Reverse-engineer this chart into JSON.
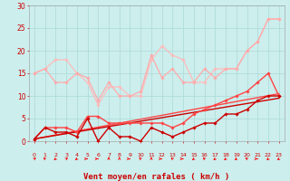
{
  "title": "",
  "xlabel": "Vent moyen/en rafales ( km/h )",
  "ylabel": "",
  "background_color": "#cceeed",
  "grid_color": "#b0dddb",
  "xlim": [
    -0.5,
    23.5
  ],
  "ylim": [
    0,
    30
  ],
  "yticks": [
    0,
    5,
    10,
    15,
    20,
    25,
    30
  ],
  "xticks": [
    0,
    1,
    2,
    3,
    4,
    5,
    6,
    7,
    8,
    9,
    10,
    11,
    12,
    13,
    14,
    15,
    16,
    17,
    18,
    19,
    20,
    21,
    22,
    23
  ],
  "series": [
    {
      "x": [
        0,
        1,
        2,
        3,
        4,
        5,
        6,
        7,
        8,
        9,
        10,
        11,
        12,
        13,
        14,
        15,
        16,
        17,
        18,
        19,
        20,
        21,
        22,
        23
      ],
      "y": [
        15,
        16,
        18,
        18,
        15,
        13,
        8,
        12,
        12,
        10,
        10,
        18,
        21,
        19,
        18,
        13,
        13,
        16,
        16,
        16,
        20,
        22,
        27,
        27
      ],
      "color": "#ffbbbb",
      "linewidth": 0.9,
      "marker": "D",
      "markersize": 1.8,
      "zorder": 2
    },
    {
      "x": [
        0,
        1,
        2,
        3,
        4,
        5,
        6,
        7,
        8,
        9,
        10,
        11,
        12,
        13,
        14,
        15,
        16,
        17,
        18,
        19,
        20,
        21,
        22,
        23
      ],
      "y": [
        15,
        16,
        13,
        13,
        15,
        14,
        9,
        13,
        10,
        10,
        11,
        19,
        14,
        16,
        13,
        13,
        16,
        14,
        16,
        16,
        20,
        22,
        27,
        27
      ],
      "color": "#ffaaaa",
      "linewidth": 0.9,
      "marker": "D",
      "markersize": 1.8,
      "zorder": 2
    },
    {
      "x": [
        0,
        1,
        2,
        3,
        4,
        5,
        6,
        7,
        8,
        9,
        10,
        11,
        12,
        13,
        14,
        15,
        16,
        17,
        18,
        19,
        20,
        21,
        22,
        23
      ],
      "y": [
        0.5,
        3,
        3,
        3,
        2,
        5.5,
        5.5,
        4,
        4,
        4,
        4,
        4,
        4,
        3,
        4,
        6,
        7,
        8,
        9,
        10,
        11,
        13,
        15,
        10
      ],
      "color": "#ff4444",
      "linewidth": 1.0,
      "marker": "D",
      "markersize": 1.8,
      "zorder": 4
    },
    {
      "x": [
        0,
        1,
        2,
        3,
        4,
        5,
        6,
        7,
        8,
        9,
        10,
        11,
        12,
        13,
        14,
        15,
        16,
        17,
        18,
        19,
        20,
        21,
        22,
        23
      ],
      "y": [
        0.5,
        3,
        2,
        2,
        1,
        5,
        0,
        3,
        1,
        1,
        0,
        3,
        2,
        1,
        2,
        3,
        4,
        4,
        6,
        6,
        7,
        9,
        10,
        10
      ],
      "color": "#cc0000",
      "linewidth": 1.0,
      "marker": "D",
      "markersize": 1.8,
      "zorder": 4
    },
    {
      "x": [
        0,
        23
      ],
      "y": [
        0.5,
        10.5
      ],
      "color": "#ff4444",
      "linewidth": 1.0,
      "marker": null,
      "markersize": 0,
      "zorder": 3
    },
    {
      "x": [
        0,
        23
      ],
      "y": [
        0.5,
        9.5
      ],
      "color": "#cc0000",
      "linewidth": 1.0,
      "marker": null,
      "markersize": 0,
      "zorder": 3
    }
  ],
  "arrow_angles": [
    45,
    -45,
    -135,
    45,
    -135,
    90,
    90,
    0,
    0,
    90,
    -45,
    0,
    90,
    -45,
    90,
    -135,
    -45,
    -135,
    -135,
    -135,
    -45,
    90,
    -135,
    -135
  ],
  "arrow_color": "#ff0000",
  "tick_color": "#cc0000",
  "xlabel_color": "#cc0000"
}
